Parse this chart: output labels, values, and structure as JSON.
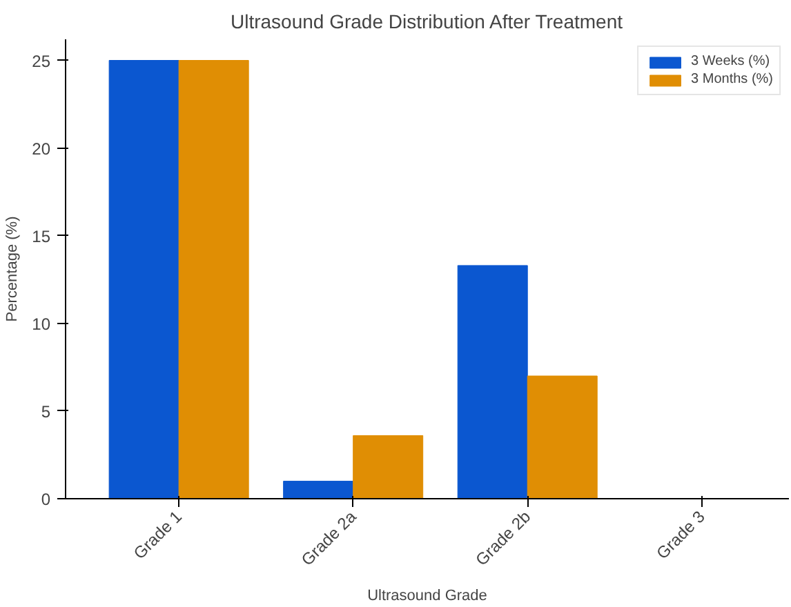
{
  "chart_data": {
    "type": "bar",
    "title": "Ultrasound Grade Distribution After Treatment",
    "xlabel": "Ultrasound Grade",
    "ylabel": "Percentage (%)",
    "categories": [
      "Grade 1",
      "Grade 2a",
      "Grade 2b",
      "Grade 3"
    ],
    "series": [
      {
        "name": "3 Weeks (%)",
        "color": "#0b57d0",
        "values": [
          25,
          1.0,
          13.3,
          0
        ]
      },
      {
        "name": "3 Months (%)",
        "color": "#e08e04",
        "values": [
          25,
          3.6,
          7.0,
          0
        ]
      }
    ],
    "ylim": [
      0,
      26.2
    ],
    "yticks": [
      0,
      5,
      10,
      15,
      20,
      25
    ],
    "grid": false,
    "legend": "top right"
  }
}
